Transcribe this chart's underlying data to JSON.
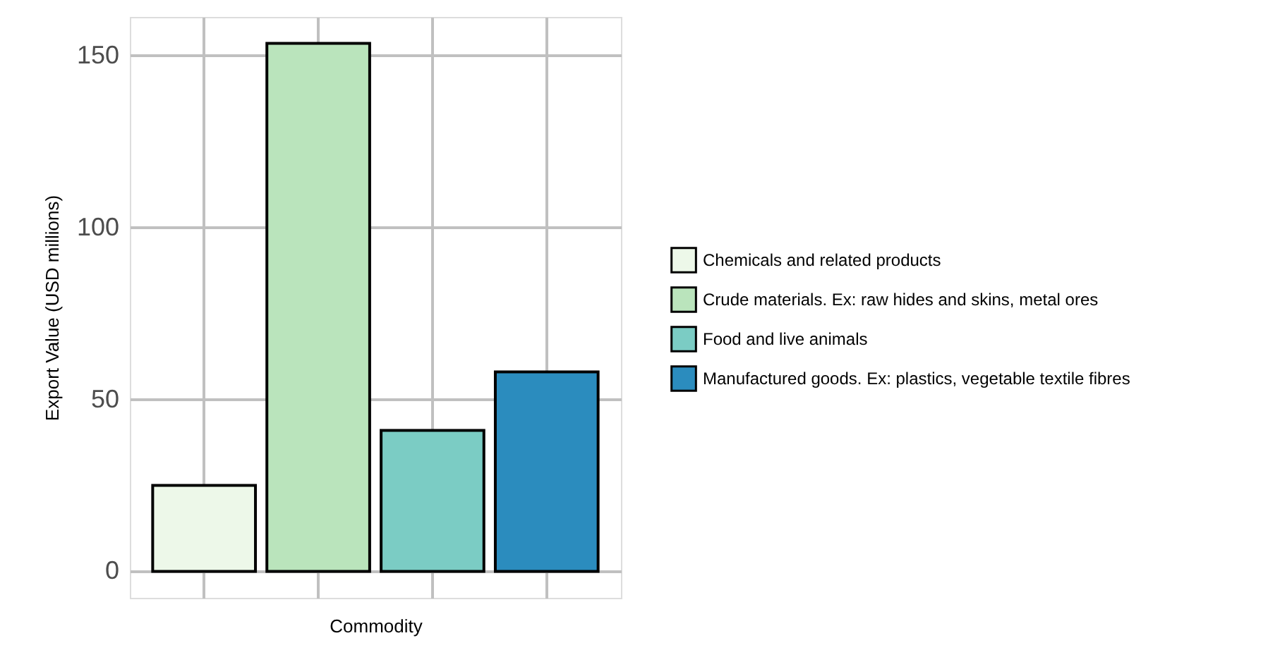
{
  "chart_data": {
    "type": "bar",
    "xlabel": "Commodity",
    "ylabel": "Export Value (USD millions)",
    "categories": [
      null,
      null,
      null,
      null
    ],
    "series": [
      {
        "name": "Chemicals and related products",
        "color": "#edf8e9",
        "values": [
          25,
          null,
          null,
          null
        ]
      },
      {
        "name": "Crude materials. Ex: raw hides and skins, metal ores",
        "color": "#bae4bc",
        "values": [
          null,
          153.5,
          null,
          null
        ]
      },
      {
        "name": "Food and live animals",
        "color": "#7bccc4",
        "values": [
          null,
          null,
          41,
          null
        ]
      },
      {
        "name": "Manufactured goods. Ex: plastics, vegetable textile fibres",
        "color": "#2b8cbe",
        "values": [
          null,
          null,
          null,
          58
        ]
      }
    ],
    "ylim": [
      -7.7,
      161.2
    ],
    "yticks": [
      0,
      50,
      100,
      150
    ],
    "grid": true,
    "legend": "right",
    "tick_labels": "y"
  }
}
